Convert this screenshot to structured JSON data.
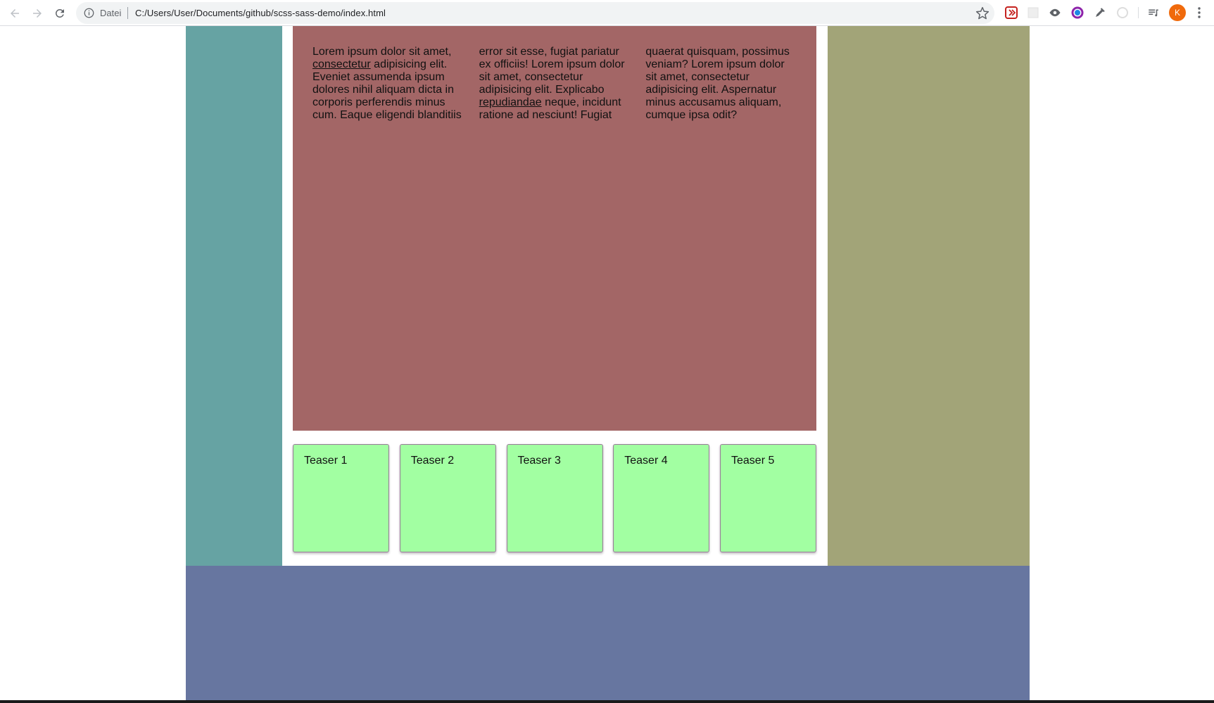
{
  "browser": {
    "scheme_label": "Datei",
    "url": "C:/Users/User/Documents/github/scss-sass-demo/index.html",
    "profile_initial": "K",
    "icons": [
      "back-arrow-icon",
      "forward-arrow-icon",
      "reload-icon",
      "info-icon",
      "star-icon",
      "extension-icon",
      "eye-icon",
      "color-circle-icon",
      "eyedropper-icon",
      "extension-icon",
      "media-queue-icon",
      "menu-dots-icon"
    ]
  },
  "colors": {
    "sidebar_left": "#66a3a3",
    "sidebar_right": "#a2a478",
    "content_box": "#a36666",
    "teaser": "#a2ffa2",
    "footer": "#6776a0"
  },
  "content": {
    "paragraph_parts": [
      "Lorem ipsum dolor sit amet, ",
      "consectetur",
      " adipisicing elit. Eveniet assumenda ipsum dolores nihil aliquam dicta in corporis perferendis minus cum. Eaque eligendi blanditiis error sit esse, fugiat pariatur ex officiis! Lorem ipsum dolor sit amet, consectetur adipisicing elit. Explicabo ",
      "repudiandae",
      " neque, incidunt ratione ad nesciunt! Fugiat quaerat quisquam, possimus veniam? Lorem ipsum dolor sit amet, consectetur adipisicing elit. Aspernatur minus accusamus aliquam, cumque ipsa odit?"
    ]
  },
  "teasers": [
    {
      "label": "Teaser 1"
    },
    {
      "label": "Teaser 2"
    },
    {
      "label": "Teaser 3"
    },
    {
      "label": "Teaser 4"
    },
    {
      "label": "Teaser 5"
    }
  ]
}
